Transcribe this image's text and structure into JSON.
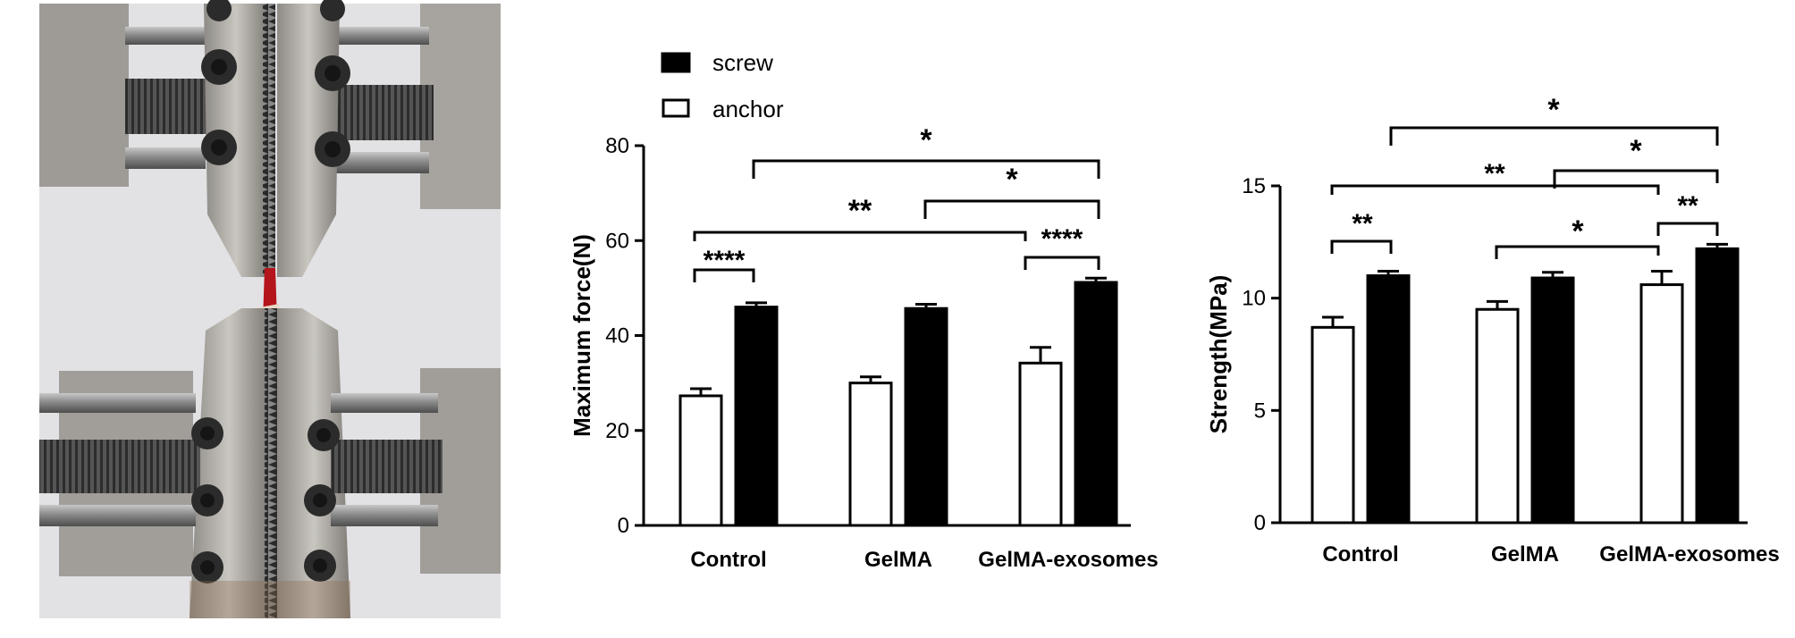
{
  "legend": {
    "items": [
      {
        "label": "screw",
        "fill": "#000000"
      },
      {
        "label": "anchor",
        "fill": "#ffffff"
      }
    ]
  },
  "photo": {
    "icon": "tensile-test-grips-photo"
  },
  "chart_data": [
    {
      "type": "bar",
      "title": "",
      "xlabel": "",
      "ylabel": "Maximum force(N)",
      "ylim": [
        0,
        80
      ],
      "yticks": [
        "0",
        "20",
        "40",
        "60",
        "80"
      ],
      "categories": [
        "Control",
        "GelMA",
        "GelMA-exosomes"
      ],
      "series": [
        {
          "name": "anchor",
          "values": [
            27.3,
            30.0,
            34.2
          ],
          "errors": [
            1.5,
            1.3,
            3.3
          ]
        },
        {
          "name": "screw",
          "values": [
            46.0,
            45.7,
            51.2
          ],
          "errors": [
            0.9,
            0.9,
            0.9
          ]
        }
      ],
      "significance": [
        {
          "label": "*",
          "from": "Control screw",
          "to": "GelMA-exosomes screw"
        },
        {
          "label": "*",
          "from": "GelMA screw",
          "to": "GelMA-exosomes screw"
        },
        {
          "label": "**",
          "from": "Control anchor",
          "to": "GelMA-exosomes anchor"
        },
        {
          "label": "****",
          "from": "GelMA-exosomes anchor",
          "to": "GelMA-exosomes screw"
        },
        {
          "label": "****",
          "from": "Control anchor",
          "to": "Control screw"
        }
      ]
    },
    {
      "type": "bar",
      "title": "",
      "xlabel": "",
      "ylabel": "Strength(MPa)",
      "ylim": [
        0,
        15
      ],
      "yticks": [
        "0",
        "5",
        "10",
        "15"
      ],
      "categories": [
        "Control",
        "GelMA",
        "GelMA-exosomes"
      ],
      "series": [
        {
          "name": "anchor",
          "values": [
            8.7,
            9.5,
            10.6
          ],
          "errors": [
            0.45,
            0.35,
            0.6
          ]
        },
        {
          "name": "screw",
          "values": [
            11.0,
            10.9,
            12.2
          ],
          "errors": [
            0.2,
            0.25,
            0.2
          ]
        }
      ],
      "significance": [
        {
          "label": "*",
          "from": "Control screw",
          "to": "GelMA-exosomes screw"
        },
        {
          "label": "*",
          "from": "GelMA screw",
          "to": "GelMA-exosomes screw"
        },
        {
          "label": "**",
          "from": "Control anchor",
          "to": "GelMA-exosomes anchor"
        },
        {
          "label": "**",
          "from": "GelMA-exosomes anchor",
          "to": "GelMA-exosomes screw"
        },
        {
          "label": "*",
          "from": "GelMA anchor",
          "to": "GelMA-exosomes anchor"
        },
        {
          "label": "**",
          "from": "Control anchor",
          "to": "Control screw"
        }
      ]
    }
  ]
}
